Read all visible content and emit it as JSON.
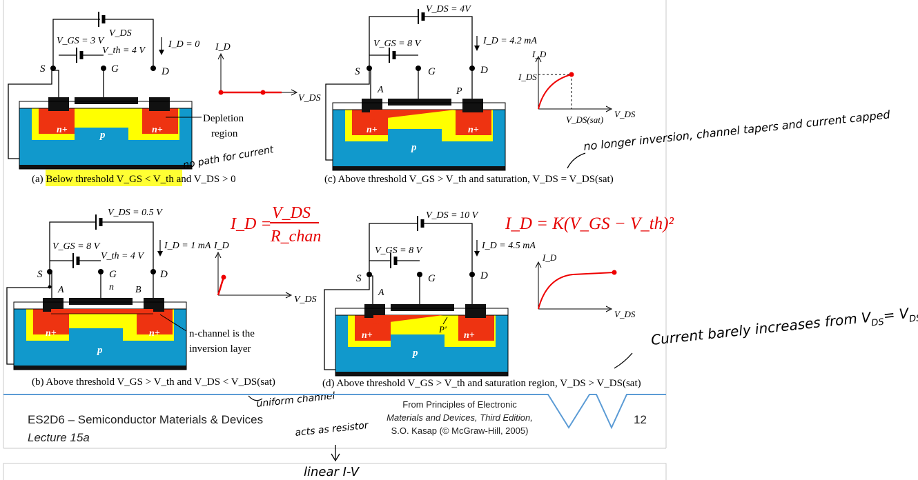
{
  "panels": {
    "a": {
      "vgs": "V_GS = 3 V",
      "vth": "V_th = 4 V",
      "vds": "V_DS",
      "id": "I_D = 0",
      "s": "S",
      "g": "G",
      "d": "D",
      "n1": "n+",
      "n2": "n+",
      "p": "p",
      "depl1": "Depletion",
      "depl2": "region",
      "cap_pre": "(a) ",
      "cap_hl": "Below threshold V_GS < V_th",
      "cap_post": " and V_DS > 0",
      "graph_y": "I_D",
      "graph_x": "V_DS"
    },
    "b": {
      "vds": "V_DS = 0.5 V",
      "vgs": "V_GS = 8 V",
      "vth": "V_th = 4 V",
      "id": "I_D = 1 mA",
      "s": "S",
      "g": "G",
      "d": "D",
      "A": "A",
      "n": "n",
      "B": "B",
      "n1": "n+",
      "n2": "n+",
      "p": "p",
      "note1": "n-channel is the",
      "note2": "inversion layer",
      "caption": "(b) Above threshold V_GS > V_th  and V_DS < V_DS(sat)",
      "graph_y": "I_D",
      "graph_x": "V_DS"
    },
    "c": {
      "vds": "V_DS = 4V",
      "vgs": "V_GS = 8 V",
      "id": "I_D = 4.2 mA",
      "s": "S",
      "g": "G",
      "d": "D",
      "A": "A",
      "P": "P",
      "n1": "n+",
      "n2": "n+",
      "p": "p",
      "caption": "(c) Above threshold V_GS > V_th and saturation, V_DS = V_DS(sat)",
      "graph_y": "I_D",
      "graph_x": "V_DS",
      "graph_ids": "I_DS",
      "graph_sat": "V_DS(sat)"
    },
    "d": {
      "vds": "V_DS = 10 V",
      "vgs": "V_GS = 8 V",
      "id": "I_D = 4.5 mA",
      "s": "S",
      "g": "G",
      "d": "D",
      "A": "A",
      "P": "P'",
      "n1": "n+",
      "n2": "n+",
      "p": "p",
      "caption": "(d) Above threshold V_GS > V_th and saturation region, V_DS > V_DS(sat)",
      "graph_y": "I_D",
      "graph_x": "V_DS"
    }
  },
  "equations": {
    "ohmic_lhs": "I_D =",
    "ohmic_num": "V_DS",
    "ohmic_den": "R_chan",
    "sat": "I_D = K(V_GS − V_th)²"
  },
  "annotations": {
    "a": "no path for current",
    "b1": "uniform channel",
    "b2": "acts as resistor",
    "b3": "linear I-V",
    "c": "no longer inversion, channel tapers and current capped",
    "d1": "Current barely increases from V",
    "d2": "DS",
    "d3": "= V",
    "d4": "DS(sat)"
  },
  "footer": {
    "course": "ES2D6 – Semiconductor Materials & Devices",
    "lecture": "Lecture 15a",
    "source_l1": "From Principles of Electronic",
    "source_l2": "Materials and Devices, Third Edition,",
    "source_l3": "S.O. Kasap (© McGraw-Hill, 2005)",
    "page": "12"
  },
  "colors": {
    "substrate": "#1199cc",
    "depletion": "#ffff00",
    "nplus": "#ee3311",
    "channel": "#ee3311",
    "graph": "#ee0000",
    "equation": "#e60000",
    "highlight": "#ffff33",
    "footer_line": "#5b9bd5"
  }
}
